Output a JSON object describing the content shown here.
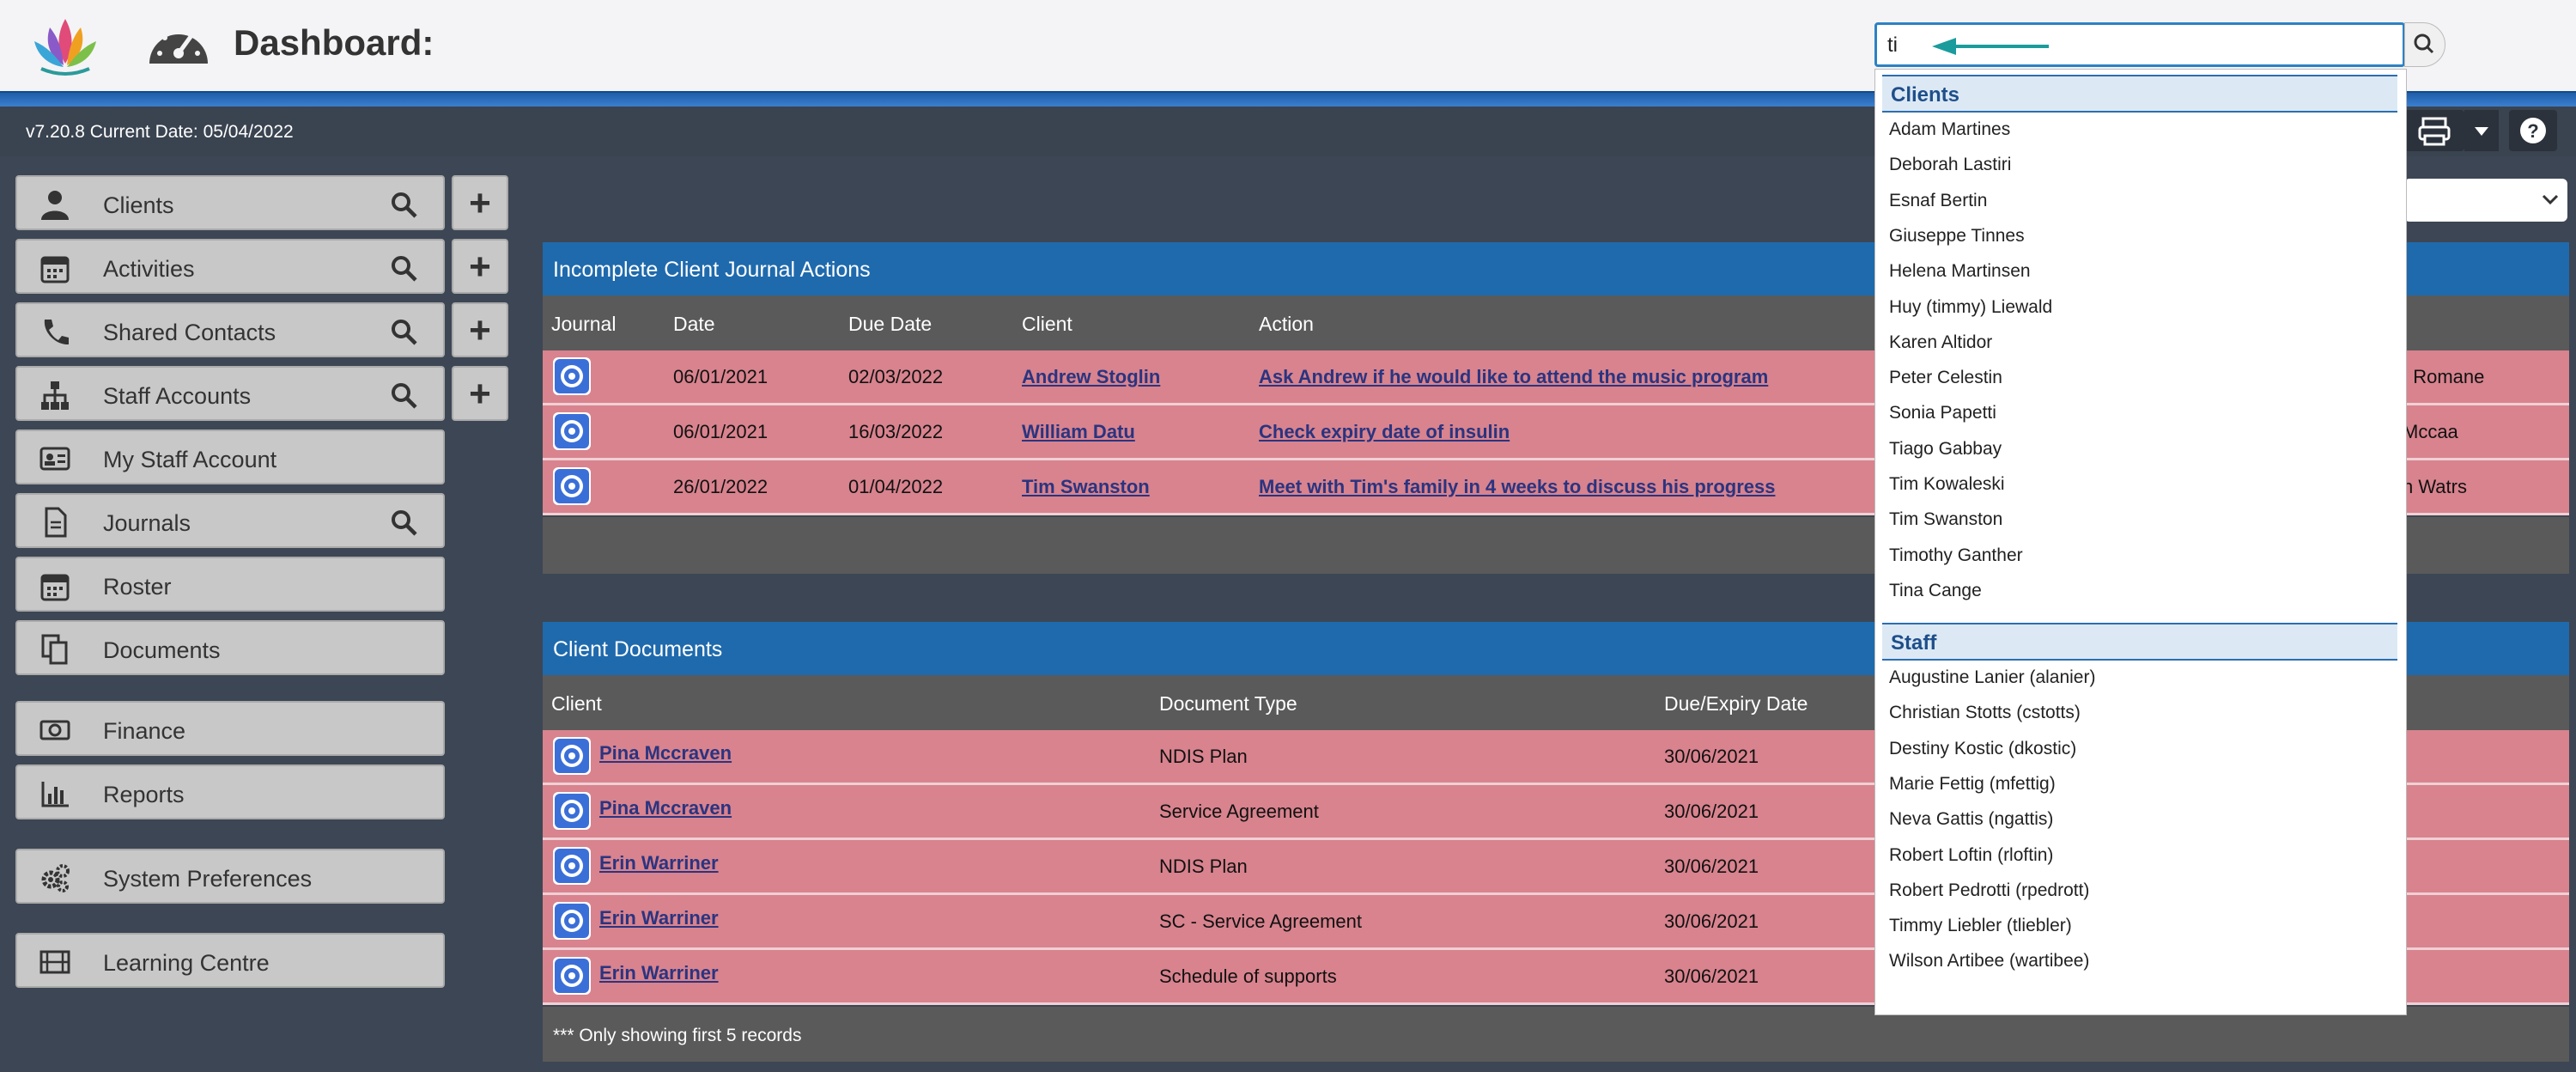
{
  "header": {
    "title": "Dashboard:",
    "search_value": "ti",
    "logo_icon": "lotus-logo-icon",
    "dash_icon": "speedometer-icon"
  },
  "subbar": {
    "version": "v7.20.8  Current Date: 05/04/2022"
  },
  "sidebar": {
    "items": [
      {
        "label": "Clients",
        "icon": "person-icon",
        "search": true,
        "plus": true
      },
      {
        "label": "Activities",
        "icon": "calendar-icon",
        "search": true,
        "plus": true
      },
      {
        "label": "Shared Contacts",
        "icon": "phone-icon",
        "search": true,
        "plus": true
      },
      {
        "label": "Staff Accounts",
        "icon": "org-chart-icon",
        "search": true,
        "plus": true
      },
      {
        "label": "My Staff Account",
        "icon": "id-card-icon",
        "search": false,
        "plus": false
      },
      {
        "label": "Journals",
        "icon": "document-icon",
        "search": true,
        "plus": false
      },
      {
        "label": "Roster",
        "icon": "calendar-icon",
        "search": false,
        "plus": false
      },
      {
        "label": "Documents",
        "icon": "copy-icon",
        "search": false,
        "plus": false
      },
      {
        "label": "Finance",
        "icon": "money-icon",
        "search": false,
        "plus": false
      },
      {
        "label": "Reports",
        "icon": "bar-chart-icon",
        "search": false,
        "plus": false
      },
      {
        "label": "System Preferences",
        "icon": "gears-icon",
        "search": false,
        "plus": false
      },
      {
        "label": "Learning Centre",
        "icon": "film-icon",
        "search": false,
        "plus": false
      }
    ]
  },
  "journal_panel": {
    "title": "Incomplete Client Journal Actions",
    "columns": [
      "Journal",
      "Date",
      "Due Date",
      "Client",
      "Action"
    ],
    "rows": [
      {
        "date": "06/01/2021",
        "due": "02/03/2022",
        "client": "Andrew Stoglin",
        "action": "Ask Andrew if he would like to attend the music program",
        "extra": ". Romane"
      },
      {
        "date": "06/01/2021",
        "due": "16/03/2022",
        "client": "William Datu",
        "action": "Check expiry date of insulin",
        "extra": "Mccaa"
      },
      {
        "date": "26/01/2022",
        "due": "01/04/2022",
        "client": "Tim Swanston",
        "action": "Meet with Tim's family in 4 weeks to discuss his progress",
        "extra": "n Watrs"
      }
    ]
  },
  "documents_panel": {
    "title": "Client Documents",
    "columns": [
      "Client",
      "Document Type",
      "Due/Expiry Date"
    ],
    "rows": [
      {
        "client": "Pina Mccraven",
        "type": "NDIS Plan",
        "date": "30/06/2021"
      },
      {
        "client": "Pina Mccraven",
        "type": "Service Agreement",
        "date": "30/06/2021"
      },
      {
        "client": "Erin Warriner",
        "type": "NDIS Plan",
        "date": "30/06/2021"
      },
      {
        "client": "Erin Warriner",
        "type": "SC - Service Agreement",
        "date": "30/06/2021"
      },
      {
        "client": "Erin Warriner",
        "type": "Schedule of supports",
        "date": "30/06/2021"
      }
    ],
    "footer": "*** Only showing first 5 records"
  },
  "dropdown": {
    "clients_heading": "Clients",
    "clients": [
      "Adam Martines",
      "Deborah Lastiri",
      "Esnaf Bertin",
      "Giuseppe Tinnes",
      "Helena Martinsen",
      "Huy (timmy) Liewald",
      "Karen Altidor",
      "Peter Celestin",
      "Sonia Papetti",
      "Tiago Gabbay",
      "Tim Kowaleski",
      "Tim Swanston",
      "Timothy Ganther",
      "Tina Cange"
    ],
    "staff_heading": "Staff",
    "staff": [
      "Augustine Lanier (alanier)",
      "Christian Stotts (cstotts)",
      "Destiny Kostic (dkostic)",
      "Marie Fettig (mfettig)",
      "Neva Gattis (ngattis)",
      "Robert Loftin (rloftin)",
      "Robert Pedrotti (rpedrott)",
      "Timmy Liebler (tliebler)",
      "Wilson Artibee (wartibee)"
    ]
  },
  "colors": {
    "accent": "#1f6aad",
    "row_alert": "#d8838e",
    "background": "#3d4654",
    "arrow": "#1a9c9c"
  }
}
